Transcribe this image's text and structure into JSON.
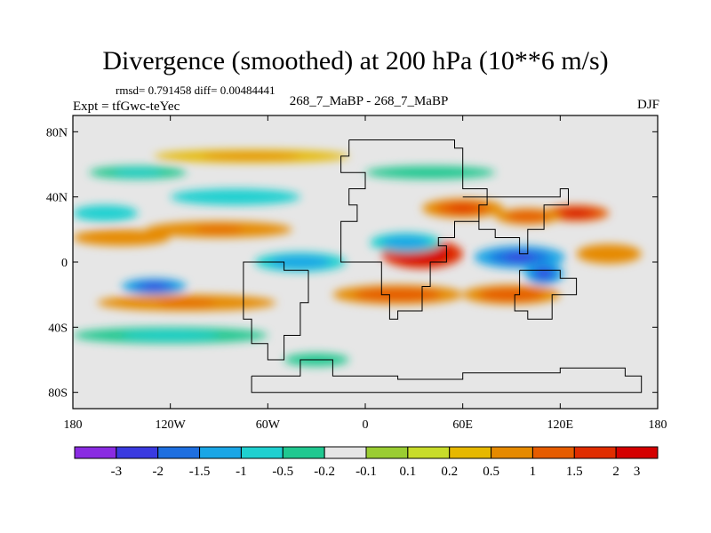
{
  "header": {
    "title": "Divergence (smoothed) at 200 hPa (10**6 m/s)",
    "stats": "rmsd= 0.791458 diff= 0.00484441",
    "expt": "Expt = tfGwc-teYec",
    "center": "268_7_MaBP - 268_7_MaBP",
    "season": "DJF"
  },
  "colors": {
    "background": "#ffffff",
    "neutral": "#e6e6e6",
    "palette": [
      "#8a2be2",
      "#3a3ae0",
      "#1e6fe0",
      "#1aa6e6",
      "#1fd0d0",
      "#20c890",
      "#e6e6e6",
      "#9acd32",
      "#c8dc2a",
      "#e6b800",
      "#e68a00",
      "#e65c00",
      "#e02d00",
      "#d40000"
    ]
  },
  "chart_data": {
    "type": "heatmap",
    "title": "Divergence (smoothed) at 200 hPa (10**6 m/s)",
    "x_ticks": [
      -180,
      -120,
      -60,
      0,
      60,
      120,
      180
    ],
    "x_tick_labels": [
      "180",
      "120W",
      "60W",
      "0",
      "60E",
      "120E",
      "180"
    ],
    "y_ticks": [
      80,
      40,
      0,
      -40,
      -80
    ],
    "y_tick_labels": [
      "80N",
      "40N",
      "0",
      "40S",
      "80S"
    ],
    "xlim": [
      -180,
      180
    ],
    "ylim": [
      -90,
      90
    ],
    "colorbar_levels": [
      -3,
      -2,
      -1.5,
      -1,
      -0.5,
      -0.2,
      -0.1,
      0.1,
      0.2,
      0.5,
      1,
      1.5,
      2,
      3
    ],
    "colorbar_labels": [
      "-3",
      "-2",
      "-1.5",
      "-1",
      "-0.5",
      "-0.2",
      "-0.1",
      "0.1",
      "0.2",
      "0.5",
      "1",
      "1.5",
      "2",
      "3"
    ],
    "features": [
      {
        "lon": 35,
        "lat": 5,
        "value": 3.0,
        "rx": 25,
        "ry": 9
      },
      {
        "lon": 95,
        "lat": 3,
        "value": -2.4,
        "rx": 28,
        "ry": 7
      },
      {
        "lon": 110,
        "lat": -7,
        "value": -2.1,
        "rx": 12,
        "ry": 7
      },
      {
        "lon": 25,
        "lat": 12,
        "value": -1.4,
        "rx": 22,
        "ry": 6
      },
      {
        "lon": -40,
        "lat": 0,
        "value": -1.3,
        "rx": 28,
        "ry": 6
      },
      {
        "lon": -130,
        "lat": -15,
        "value": -2.0,
        "rx": 20,
        "ry": 5
      },
      {
        "lon": 60,
        "lat": 33,
        "value": 1.6,
        "rx": 25,
        "ry": 6
      },
      {
        "lon": 130,
        "lat": 30,
        "value": 2.2,
        "rx": 20,
        "ry": 5
      },
      {
        "lon": 100,
        "lat": 28,
        "value": 1.5,
        "rx": 20,
        "ry": 5
      },
      {
        "lon": 20,
        "lat": -20,
        "value": 1.4,
        "rx": 40,
        "ry": 6
      },
      {
        "lon": 90,
        "lat": -20,
        "value": 1.5,
        "rx": 30,
        "ry": 6
      },
      {
        "lon": -90,
        "lat": 20,
        "value": 1.2,
        "rx": 45,
        "ry": 5
      },
      {
        "lon": -150,
        "lat": 15,
        "value": 1.0,
        "rx": 30,
        "ry": 5
      },
      {
        "lon": -110,
        "lat": -25,
        "value": 1.1,
        "rx": 55,
        "ry": 5
      },
      {
        "lon": -160,
        "lat": 30,
        "value": -0.9,
        "rx": 20,
        "ry": 5
      },
      {
        "lon": -80,
        "lat": 40,
        "value": -0.9,
        "rx": 40,
        "ry": 5
      },
      {
        "lon": -70,
        "lat": 65,
        "value": 0.6,
        "rx": 60,
        "ry": 4
      },
      {
        "lon": -140,
        "lat": 55,
        "value": -0.5,
        "rx": 30,
        "ry": 4
      },
      {
        "lon": -120,
        "lat": -45,
        "value": -0.5,
        "rx": 60,
        "ry": 5
      },
      {
        "lon": -30,
        "lat": -60,
        "value": -0.4,
        "rx": 20,
        "ry": 4
      },
      {
        "lon": 40,
        "lat": 55,
        "value": -0.4,
        "rx": 40,
        "ry": 4
      },
      {
        "lon": 150,
        "lat": 5,
        "value": 0.8,
        "rx": 20,
        "ry": 6
      }
    ]
  }
}
